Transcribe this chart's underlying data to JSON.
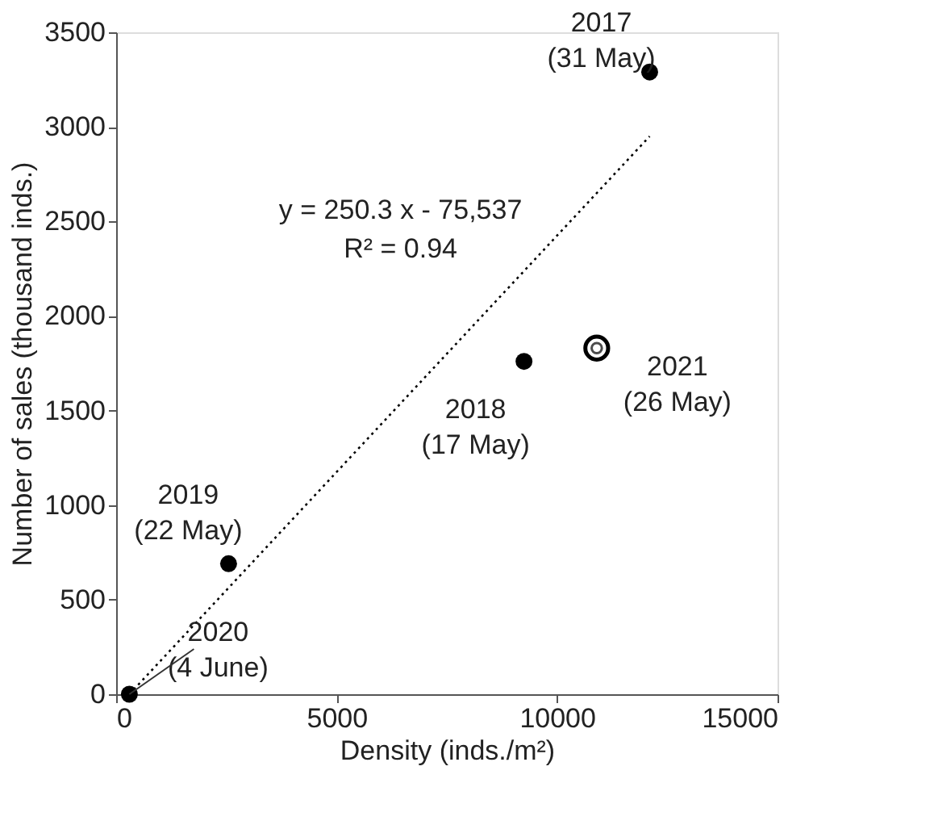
{
  "chart_data": {
    "type": "scatter",
    "xlabel": "Density (inds./m²)",
    "ylabel": "Number of sales (thousand inds.)",
    "xlim": [
      0,
      15000
    ],
    "xticks": [
      0,
      5000,
      10000,
      15000
    ],
    "ylim": [
      0,
      3500
    ],
    "yticks": [
      0,
      500,
      1000,
      1500,
      2000,
      2500,
      3000,
      3500
    ],
    "grid": false,
    "marker": "circle",
    "series": [
      {
        "color": "#000000",
        "x": [
          300,
          2550,
          9250,
          12100
        ],
        "values": [
          0,
          690,
          1760,
          3290
        ]
      },
      {
        "color": "#000000",
        "x": [
          10900
        ],
        "values": [
          1830
        ],
        "marker": "circle"
      },
      {
        "type": "line",
        "color": "#000000",
        "line_style": "dotted",
        "marker": "none",
        "x": [
          300,
          12100
        ],
        "values": [
          0,
          2950
        ]
      }
    ],
    "annotations": [
      {
        "text": "2017\n(31 May)",
        "x": 12100,
        "y": 3290
      },
      {
        "text": "2018\n(17 May)",
        "x": 9250,
        "y": 1760
      },
      {
        "text": "2019\n(22 May)",
        "x": 2550,
        "y": 690
      },
      {
        "text": "2020\n(4 June)",
        "x": 300,
        "y": 0
      },
      {
        "text": "2021\n(26 May)",
        "x": 10900,
        "y": 1830
      },
      "y = 250.3 x - 75,537\nR² = 0.94"
    ]
  }
}
